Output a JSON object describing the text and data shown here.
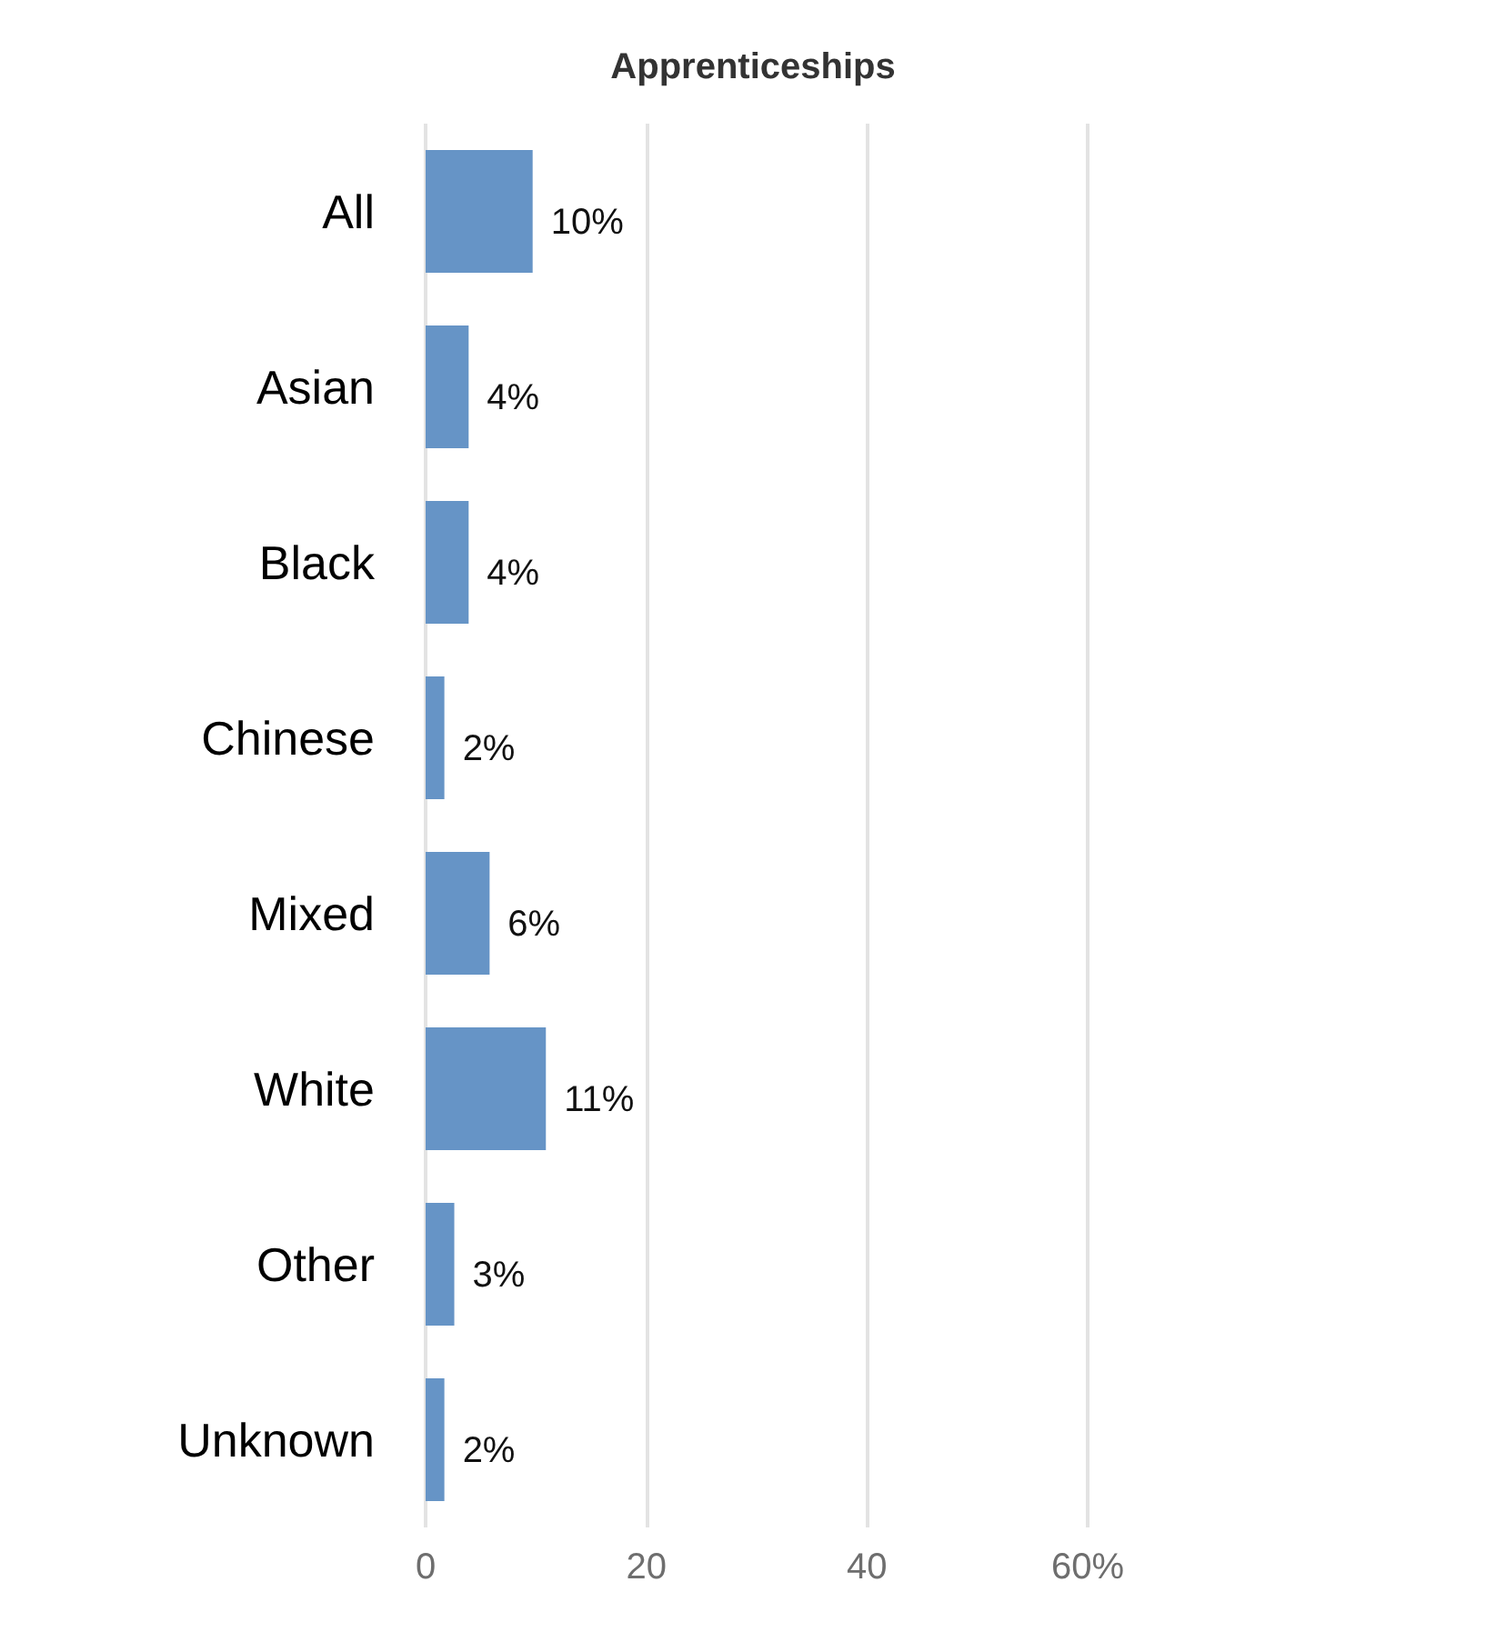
{
  "chart_data": {
    "type": "bar",
    "orientation": "horizontal",
    "title": "Apprenticeships",
    "categories": [
      "All",
      "Asian",
      "Black",
      "Chinese",
      "Mixed",
      "White",
      "Other",
      "Unknown"
    ],
    "values": [
      9.7,
      3.9,
      3.9,
      1.7,
      5.8,
      10.9,
      2.6,
      1.7
    ],
    "value_labels": [
      "10%",
      "4%",
      "4%",
      "2%",
      "6%",
      "11%",
      "3%",
      "2%"
    ],
    "color": "#6694c6",
    "xlim": [
      0,
      60
    ],
    "xticks": [
      0,
      20,
      40,
      {
        "value": 60,
        "label": "60%"
      }
    ],
    "grid": "x"
  }
}
